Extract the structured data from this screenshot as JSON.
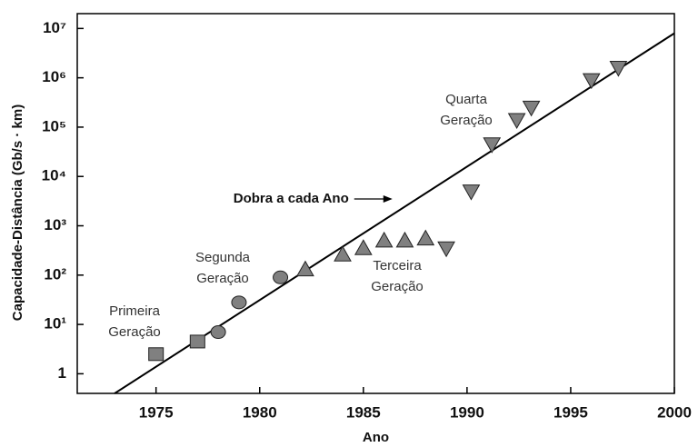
{
  "chart_data": {
    "type": "scatter",
    "xlabel": "Ano",
    "ylabel": "Capacidade-Distância (Gb/s · km)",
    "log_y": true,
    "xlim": [
      1971.2,
      2000
    ],
    "ylim": [
      0.4,
      20000000
    ],
    "xticks": [
      1975,
      1980,
      1985,
      1990,
      1995,
      2000
    ],
    "yticks": [
      1,
      {
        "value": 10,
        "label": "10¹"
      },
      {
        "value": 100,
        "label": "10²"
      },
      {
        "value": 1000,
        "label": "10³"
      },
      {
        "value": 10000,
        "label": "10⁴"
      },
      {
        "value": 100000,
        "label": "10⁵"
      },
      {
        "value": 1000000,
        "label": "10⁶"
      },
      {
        "value": 10000000,
        "label": "10⁷"
      }
    ],
    "series": [
      {
        "label": [
          "Primeira",
          "Geração"
        ],
        "shape": "square",
        "color": "#808080",
        "x": [
          1975,
          1977
        ],
        "values": [
          2.5,
          4.5
        ]
      },
      {
        "label": [
          "Segunda",
          "Geração"
        ],
        "shape": "circle",
        "color": "#808080",
        "x": [
          1978,
          1979,
          1981
        ],
        "values": [
          7,
          28,
          90
        ]
      },
      {
        "label": [
          "Terceira",
          "Geração"
        ],
        "shape": "triangle-up",
        "color": "#808080",
        "x": [
          1982.2,
          1984,
          1985,
          1986,
          1987,
          1988
        ],
        "values": [
          130,
          260,
          350,
          500,
          500,
          550
        ]
      },
      {
        "label": [
          "Quarta",
          "Geração"
        ],
        "shape": "triangle-down",
        "color": "#808080",
        "x": [
          1989,
          1990.2,
          1991.2,
          1992.4,
          1993.1,
          1996,
          1997.3
        ],
        "values": [
          350,
          5000,
          45000,
          140000,
          250000,
          900000,
          1600000
        ]
      }
    ],
    "trend_line": {
      "x": [
        1973,
        2000
      ],
      "values": [
        0.4,
        8000000
      ],
      "color": "#000000"
    },
    "annotation": {
      "text": "Dobra a cada Ano",
      "x": 1986.4,
      "value": 3500
    }
  }
}
